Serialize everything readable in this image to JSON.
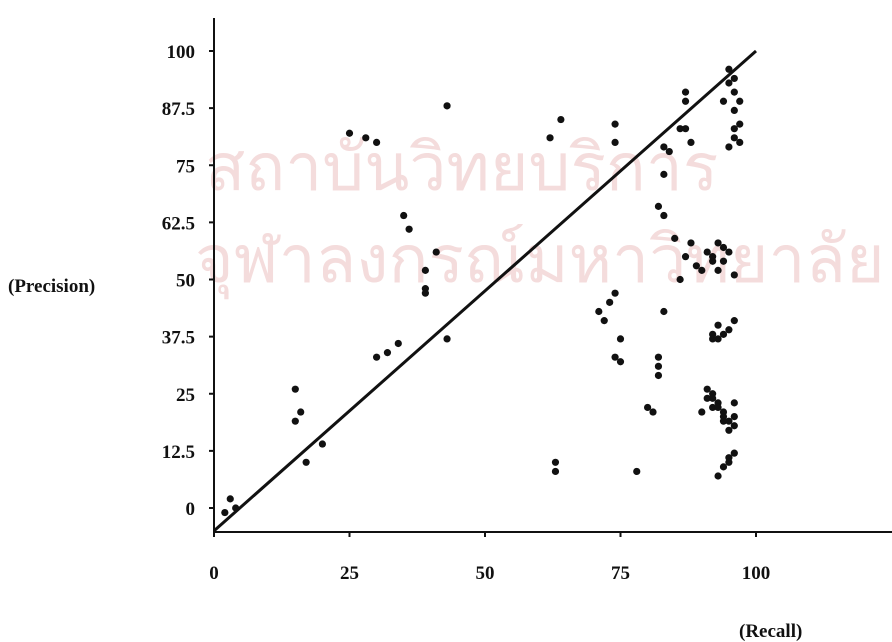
{
  "watermark": {
    "line1": "สถาบันวิทยบริการ",
    "line2": "จุฬาลงกรณ์มหาวิทยาลัย",
    "color": "#f4dcdc"
  },
  "chart_data": {
    "type": "scatter",
    "xlabel": "(Recall)",
    "ylabel": "(Precision)",
    "xlim": [
      0,
      125
    ],
    "ylim": [
      -6,
      105
    ],
    "xticks": [
      "0",
      "25",
      "50",
      "75",
      "100"
    ],
    "yticks": [
      "0",
      "12.5",
      "25",
      "37.5",
      "50",
      "62.5",
      "75",
      "87.5",
      "100"
    ],
    "grid": false,
    "legend": "none",
    "reference_line": {
      "x": [
        0,
        100
      ],
      "y": [
        -5,
        100
      ]
    },
    "points": {
      "x": [
        2,
        3,
        4,
        15,
        16,
        15,
        17,
        20,
        25,
        28,
        30,
        30,
        32,
        34,
        35,
        36,
        39,
        39,
        39,
        41,
        43,
        43,
        62,
        64,
        63,
        63,
        74,
        74,
        74,
        71,
        72,
        73,
        74,
        75,
        75,
        78,
        80,
        81,
        82,
        82,
        82,
        83,
        82,
        83,
        83,
        84,
        83,
        85,
        86,
        87,
        87,
        87,
        88,
        86,
        87,
        88,
        89,
        90,
        91,
        92,
        93,
        94,
        92,
        93,
        94,
        95,
        96,
        95,
        94,
        96,
        97,
        96,
        95,
        97,
        96,
        96,
        95,
        97,
        96,
        92,
        93,
        94,
        95,
        96,
        92,
        94,
        96,
        90,
        91,
        92,
        93,
        94,
        95,
        96,
        91,
        92,
        93,
        94,
        95,
        96,
        92,
        93,
        94,
        95,
        96,
        95,
        93
      ],
      "y": [
        -1,
        2,
        0,
        19,
        21,
        26,
        10,
        14,
        82,
        81,
        80,
        33,
        34,
        36,
        64,
        61,
        52,
        48,
        47,
        56,
        88,
        37,
        81,
        85,
        10,
        8,
        84,
        80,
        33,
        43,
        41,
        45,
        47,
        37,
        32,
        8,
        22,
        21,
        29,
        33,
        31,
        43,
        66,
        64,
        73,
        78,
        79,
        59,
        83,
        91,
        89,
        83,
        80,
        50,
        55,
        58,
        53,
        52,
        56,
        54,
        58,
        54,
        55,
        52,
        57,
        56,
        51,
        93,
        89,
        87,
        84,
        81,
        79,
        80,
        91,
        94,
        96,
        89,
        83,
        38,
        37,
        38,
        39,
        41,
        22,
        21,
        20,
        21,
        24,
        25,
        23,
        20,
        19,
        18,
        26,
        24,
        22,
        19,
        17,
        23,
        37,
        40,
        9,
        11,
        12,
        10,
        7
      ]
    }
  }
}
